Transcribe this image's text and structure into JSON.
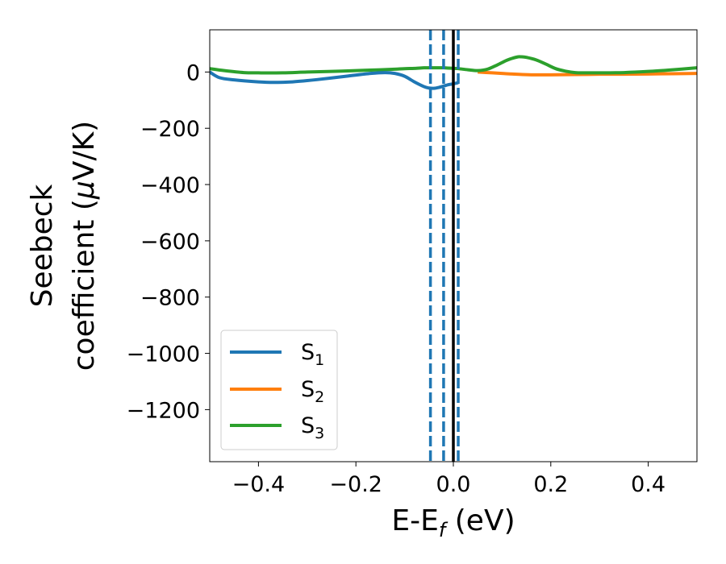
{
  "chart_data": {
    "type": "line",
    "xlabel": "E-E",
    "xlabel_sub": "f",
    "xlabel_unit": " (eV)",
    "ylabel_line1": "Seebeck",
    "ylabel_line2_a": "coefficient  (",
    "ylabel_line2_mu": "μ",
    "ylabel_line2_b": "V/K)",
    "xlim": [
      -0.5,
      0.5
    ],
    "ylim": [
      -1385,
      150
    ],
    "xticks": [
      -0.4,
      -0.2,
      0.0,
      0.2,
      0.4
    ],
    "xtick_labels": [
      "−0.4",
      "−0.2",
      "0.0",
      "0.2",
      "0.4"
    ],
    "yticks": [
      0,
      -200,
      -400,
      -600,
      -800,
      -1000,
      -1200
    ],
    "ytick_labels": [
      "0",
      "−200",
      "−400",
      "−600",
      "−800",
      "−1000",
      "−1200"
    ],
    "grid": false,
    "legend_position": "lower-left",
    "series": [
      {
        "name": "S",
        "subscript": "1",
        "color": "#1f77b4",
        "x": [
          -0.5,
          -0.48,
          -0.45,
          -0.4,
          -0.37,
          -0.33,
          -0.28,
          -0.22,
          -0.17,
          -0.14,
          -0.12,
          -0.1,
          -0.08,
          -0.06,
          -0.05,
          -0.04,
          -0.03,
          -0.02,
          -0.01,
          0.0,
          0.01
        ],
        "y": [
          0,
          -20,
          -28,
          -35,
          -37,
          -35,
          -27,
          -15,
          -5,
          -2,
          -5,
          -15,
          -35,
          -52,
          -57,
          -58,
          -55,
          -50,
          -45,
          -42,
          -38
        ]
      },
      {
        "name": "S",
        "subscript": "2",
        "color": "#ff7f0e",
        "x": [
          0.05,
          0.08,
          0.1,
          0.13,
          0.16,
          0.2,
          0.25,
          0.3,
          0.35,
          0.4,
          0.45,
          0.5
        ],
        "y": [
          0,
          -3,
          -5,
          -8,
          -10,
          -10,
          -9,
          -8,
          -8,
          -7,
          -6,
          -5
        ]
      },
      {
        "name": "S",
        "subscript": "3",
        "color": "#2ca02c",
        "x": [
          -0.5,
          -0.47,
          -0.43,
          -0.4,
          -0.35,
          -0.3,
          -0.25,
          -0.2,
          -0.15,
          -0.12,
          -0.1,
          -0.08,
          -0.06,
          -0.05,
          -0.04,
          -0.03,
          -0.02,
          -0.01,
          0.0,
          0.01,
          0.03,
          0.05,
          0.07,
          0.09,
          0.11,
          0.13,
          0.14,
          0.15,
          0.17,
          0.19,
          0.21,
          0.23,
          0.25,
          0.27,
          0.3,
          0.35,
          0.4,
          0.45,
          0.5
        ],
        "y": [
          12,
          5,
          -2,
          -3,
          -3,
          0,
          2,
          5,
          8,
          10,
          12,
          13,
          15,
          15,
          15,
          15,
          15,
          14,
          13,
          12,
          8,
          5,
          10,
          25,
          42,
          53,
          54,
          52,
          43,
          28,
          12,
          3,
          -2,
          -3,
          -3,
          -2,
          2,
          8,
          15
        ]
      }
    ],
    "vlines": [
      {
        "x": 0.0,
        "color": "#000000",
        "style": "solid"
      },
      {
        "x": -0.047,
        "color": "#1f77b4",
        "style": "dashed"
      },
      {
        "x": -0.02,
        "color": "#1f77b4",
        "style": "dashed"
      },
      {
        "x": 0.01,
        "color": "#1f77b4",
        "style": "dashed"
      }
    ]
  }
}
